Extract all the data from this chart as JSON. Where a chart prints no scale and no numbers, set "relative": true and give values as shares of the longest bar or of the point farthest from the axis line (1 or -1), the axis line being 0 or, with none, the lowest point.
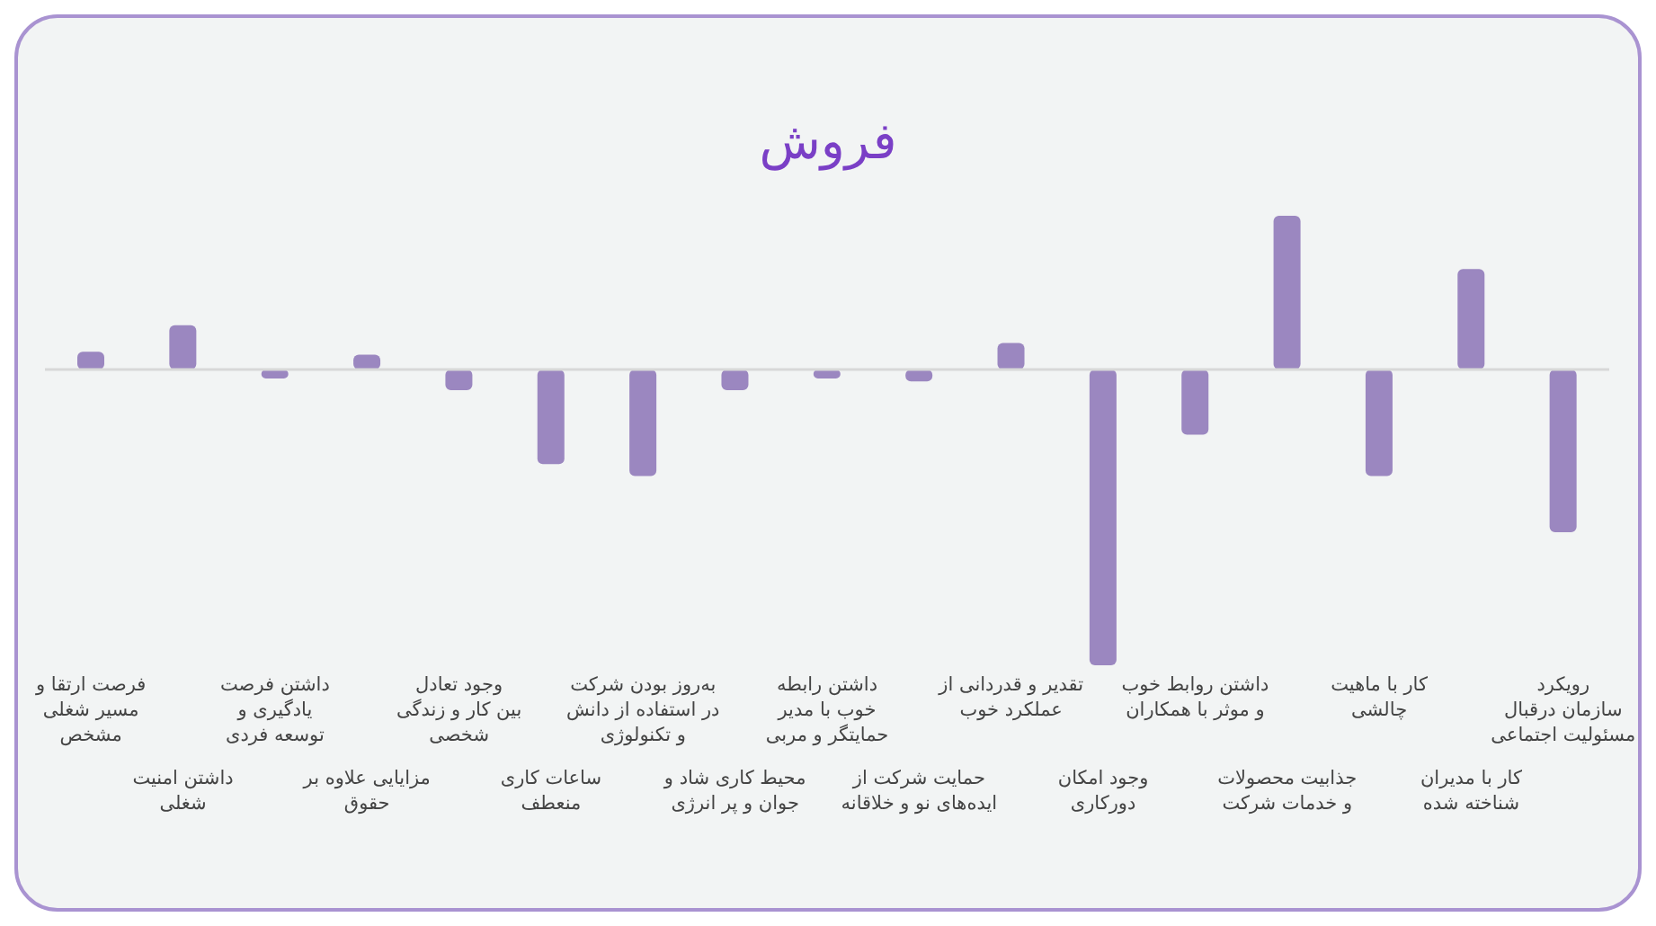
{
  "chart_data": {
    "type": "bar",
    "title": "فروش",
    "relative": true,
    "color": "#9b87c0",
    "categories": [
      "فرصت ارتقا و\nمسیر شغلی\nمشخص",
      "داشتن امنیت\nشغلی",
      "داشتن فرصت\nیادگیری و\nتوسعه فردی",
      "مزایایی علاوه بر\nحقوق",
      "وجود تعادل\nبین کار و زندگی\nشخصی",
      "ساعات کاری\nمنعطف",
      "به‌روز بودن شرکت\nدر استفاده از دانش\nو تکنولوژی",
      "محیط کاری شاد و\nجوان و پر انرژی",
      "داشتن رابطه\nخوب با مدیر\nحمایتگر و مربی",
      "حمایت شرکت از\nایده‌های نو و خلاقانه",
      "تقدیر و قدردانی از\nعملکرد خوب",
      "وجود امکان\nدورکاری",
      "داشتن روابط خوب\nو موثر با همکاران",
      "جذابیت محصولات\nو خدمات شرکت",
      "کار با ماهیت\nچالشی",
      "کار با مدیران\nشناخته شده",
      "رویکرد\nسازمان درقبال\nمسئولیت اجتماعی"
    ],
    "values": [
      0.06,
      0.15,
      -0.03,
      0.05,
      -0.07,
      -0.32,
      -0.36,
      -0.07,
      -0.03,
      -0.04,
      0.09,
      -1,
      -0.22,
      0.52,
      -0.36,
      0.34,
      -0.55
    ]
  }
}
